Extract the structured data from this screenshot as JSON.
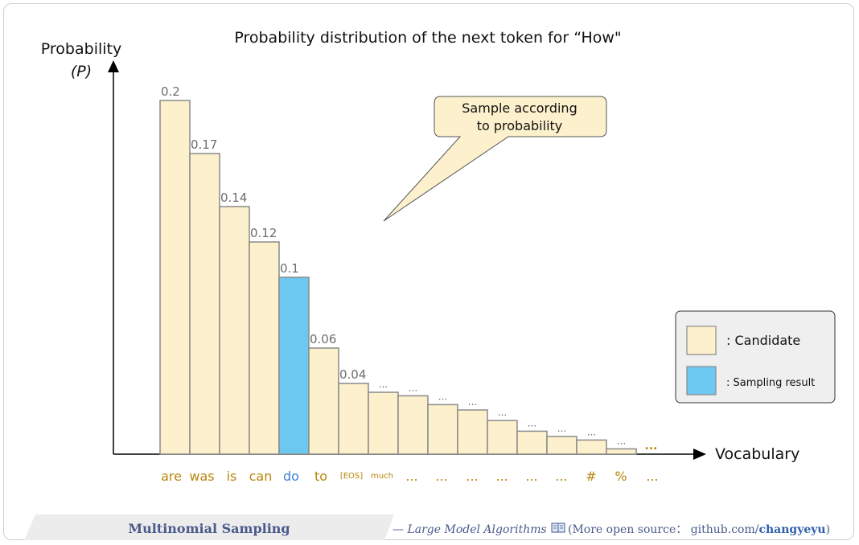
{
  "chart_data": {
    "type": "bar",
    "title": "Probability distribution of the next token for  “How\"",
    "ylabel": "Probability",
    "ylabel_symbol": "(P)",
    "xlabel": "Vocabulary",
    "ylim": [
      0,
      0.21
    ],
    "categories": [
      "are",
      "was",
      "is",
      "can",
      "do",
      "to",
      "[EOS]",
      "much",
      "...",
      "...",
      "...",
      "...",
      "...",
      "...",
      "#",
      "%",
      "..."
    ],
    "values": [
      0.2,
      0.17,
      0.14,
      0.12,
      0.1,
      0.06,
      0.04,
      0.035,
      0.033,
      0.028,
      0.025,
      0.019,
      0.013,
      0.01,
      0.008,
      0.003,
      null
    ],
    "value_labels": [
      "0.2",
      "0.17",
      "0.14",
      "0.12",
      "0.1",
      "0.06",
      "0.04",
      "...",
      "...",
      "...",
      "...",
      "...",
      "...",
      "...",
      "...",
      "...",
      "..."
    ],
    "highlight_index": 4,
    "colors": {
      "candidate": "#fdf0cc",
      "sampled": "#6cc8f0",
      "bar_border": "#8a8a8a",
      "tick_text": "#b8860b",
      "tick_highlight": "#3b7fd6"
    },
    "legend": {
      "placement": "right",
      "entries": [
        {
          "label": ":  Candidate",
          "color": "#fdf0cc"
        },
        {
          "label": ":  Sampling result",
          "color": "#6cc8f0"
        }
      ]
    },
    "annotations": {
      "callout": [
        "Sample according",
        "to probability"
      ]
    },
    "grid": false
  },
  "footer": {
    "title": "Multinomial Sampling",
    "credit_prefix": "— Large Model Algorithms",
    "book_icon": "book-icon",
    "credit_suffix": "(More open source：  github.com/",
    "credit_handle": "changyeyu",
    "credit_close": ")"
  }
}
